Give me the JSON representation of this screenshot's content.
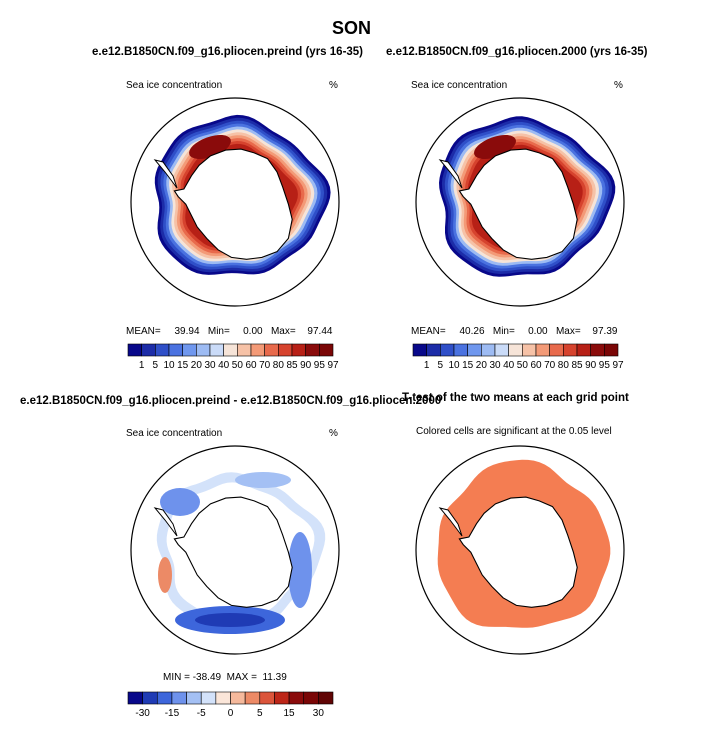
{
  "figure": {
    "title": "SON"
  },
  "colors": {
    "ice_cmap": [
      "#08088a",
      "#1c2ca8",
      "#2f4fc8",
      "#4a72e0",
      "#6f97ee",
      "#9dbbf3",
      "#cadbf8",
      "#f6e4d8",
      "#f6c2a7",
      "#f39a77",
      "#e86a4c",
      "#d6432e",
      "#b72016",
      "#8a0b0b"
    ],
    "diff_cmap": [
      "#08088a",
      "#1f3bb5",
      "#3d66db",
      "#6e92ec",
      "#a4c0f4",
      "#d3e2fa",
      "#fbe6d9",
      "#f5b99c",
      "#ec8a66",
      "#db553b",
      "#bd2618",
      "#8a0b0b"
    ],
    "signif": "#f47d52",
    "land": "#ffffff",
    "coast": "#000000"
  },
  "panels": [
    {
      "id": "preind",
      "title": "e.e12.B1850CN.f09_g16.pliocen.preind (yrs 16-35)",
      "left_label": "Sea ice concentration",
      "right_label": "%",
      "stats": {
        "mean_label": "MEAN=",
        "mean": "39.94",
        "min_label": "Min=",
        "min": "0.00",
        "max_label": "Max=",
        "max": "97.44"
      }
    },
    {
      "id": "2000",
      "title": "e.e12.B1850CN.f09_g16.pliocen.2000 (yrs 16-35)",
      "left_label": "Sea ice concentration",
      "right_label": "%",
      "stats": {
        "mean_label": "MEAN=",
        "mean": "40.26",
        "min_label": "Min=",
        "min": "0.00",
        "max_label": "Max=",
        "max": "97.39"
      }
    },
    {
      "id": "diff",
      "title": "e.e12.B1850CN.f09_g16.pliocen.preind - e.e12.B1850CN.f09_g16.pliocen.2000",
      "left_label": "Sea ice concentration",
      "right_label": "%",
      "stats_text": "MIN = -38.49  MAX =  11.39"
    },
    {
      "id": "ttest",
      "title": "T-test of the two means at each grid point",
      "subtitle": "Colored cells are significant at the 0.05 level"
    }
  ],
  "chart_data": [
    {
      "type": "heatmap",
      "title": "e.e12.B1850CN.f09_g16.pliocen.preind (yrs 16-35)",
      "variable": "Sea ice concentration",
      "units": "%",
      "projection": "south polar stereographic",
      "mean": 39.94,
      "min": 0.0,
      "max": 97.44,
      "colorbar_levels": [
        1,
        5,
        10,
        15,
        20,
        30,
        40,
        50,
        60,
        70,
        80,
        85,
        90,
        95,
        97
      ],
      "colorbar_ticks": [
        "1",
        "5",
        "10",
        "15",
        "20",
        "30",
        "40",
        "50",
        "60",
        "70",
        "80",
        "85",
        "90",
        "95",
        "97"
      ]
    },
    {
      "type": "heatmap",
      "title": "e.e12.B1850CN.f09_g16.pliocen.2000 (yrs 16-35)",
      "variable": "Sea ice concentration",
      "units": "%",
      "projection": "south polar stereographic",
      "mean": 40.26,
      "min": 0.0,
      "max": 97.39,
      "colorbar_levels": [
        1,
        5,
        10,
        15,
        20,
        30,
        40,
        50,
        60,
        70,
        80,
        85,
        90,
        95,
        97
      ],
      "colorbar_ticks": [
        "1",
        "5",
        "10",
        "15",
        "20",
        "30",
        "40",
        "50",
        "60",
        "70",
        "80",
        "85",
        "90",
        "95",
        "97"
      ]
    },
    {
      "type": "heatmap",
      "title": "e.e12.B1850CN.f09_g16.pliocen.preind - e.e12.B1850CN.f09_g16.pliocen.2000",
      "variable": "Sea ice concentration",
      "units": "%",
      "projection": "south polar stereographic",
      "min": -38.49,
      "max": 11.39,
      "colorbar_levels": [
        -30,
        -20,
        -15,
        -10,
        -5,
        -1,
        0,
        1,
        5,
        10,
        15,
        20,
        30
      ],
      "colorbar_ticks": [
        "-30",
        "-15",
        "-5",
        "0",
        "5",
        "15",
        "30"
      ]
    },
    {
      "type": "heatmap",
      "title": "T-test of the two means at each grid point",
      "subtitle": "Colored cells are significant at the 0.05 level",
      "projection": "south polar stereographic",
      "significant_region": "most of the sea-ice ring around Antarctica"
    }
  ]
}
